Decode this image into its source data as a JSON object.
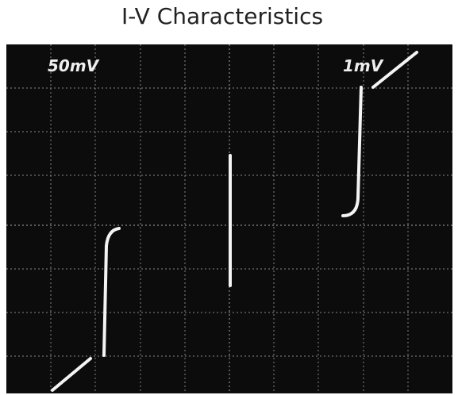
{
  "header": {
    "title": "I-V Characteristics"
  },
  "screen": {
    "left_label": "50mV",
    "right_label": "1mV"
  }
}
